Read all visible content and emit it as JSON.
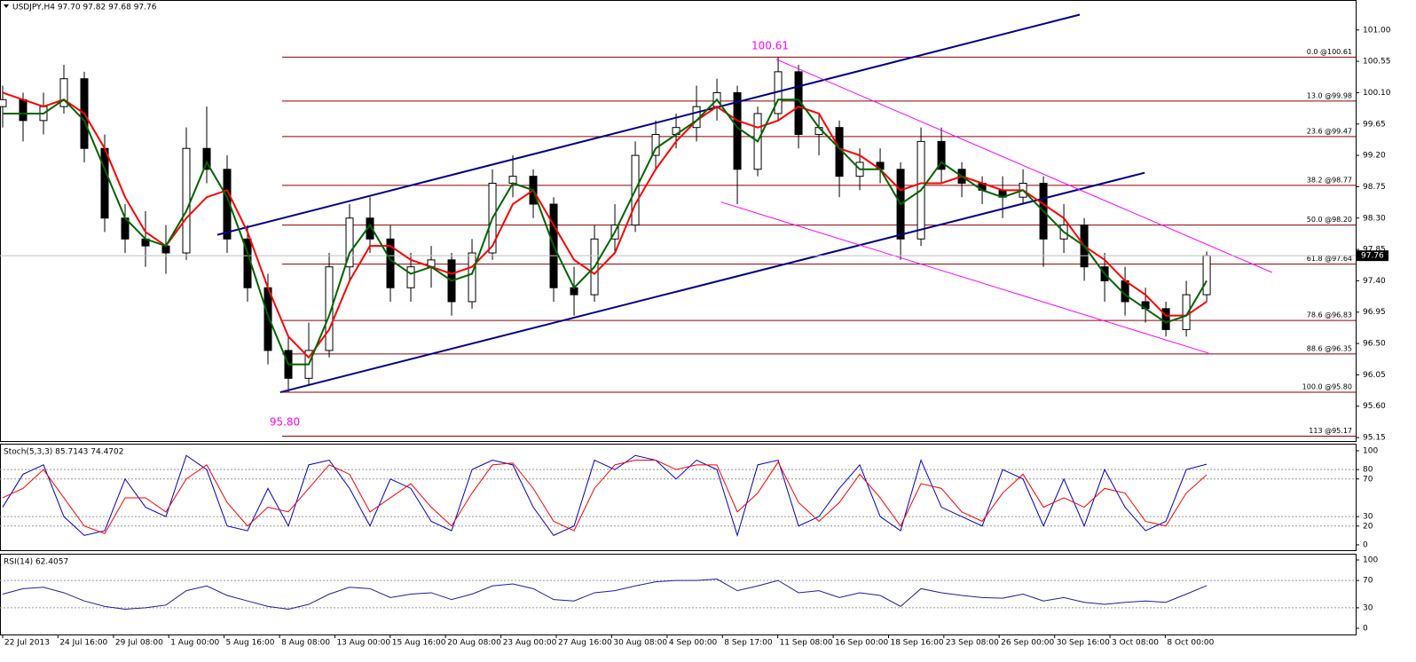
{
  "chart_data": [
    {
      "type": "candlestick",
      "title": "USDJPY,H4 97.70 97.82 97.68 97.76",
      "annotations": [
        "100.61",
        "95.80"
      ],
      "xlim": [
        -0.13,
        66.3
      ],
      "ylim": [
        95.1,
        101.43
      ],
      "yticks": [
        {
          "value": 101.0,
          "label": "101.00"
        },
        {
          "value": 100.55,
          "label": "100.55"
        },
        {
          "value": 100.1,
          "label": "100.10"
        },
        {
          "value": 99.65,
          "label": "99.65"
        },
        {
          "value": 99.2,
          "label": "99.20"
        },
        {
          "value": 98.75,
          "label": "98.75"
        },
        {
          "value": 98.3,
          "label": "98.30"
        },
        {
          "value": 97.85,
          "label": "97.85"
        },
        {
          "value": 97.4,
          "label": "97.40"
        },
        {
          "value": 96.95,
          "label": "96.95"
        },
        {
          "value": 96.5,
          "label": "96.50"
        },
        {
          "value": 96.05,
          "label": "96.05"
        },
        {
          "value": 95.6,
          "label": "95.60"
        },
        {
          "value": 95.15,
          "label": "95.15"
        }
      ],
      "xticks": [
        {
          "value": 0,
          "label": "22 Jul 2013"
        },
        {
          "value": 2.71,
          "label": "24 Jul 16:00"
        },
        {
          "value": 5.43,
          "label": "29 Jul 08:00"
        },
        {
          "value": 8.14,
          "label": "1 Aug 00:00"
        },
        {
          "value": 10.85,
          "label": "5 Aug 16:00"
        },
        {
          "value": 13.57,
          "label": "8 Aug 08:00"
        },
        {
          "value": 16.28,
          "label": "13 Aug 00:00"
        },
        {
          "value": 18.99,
          "label": "15 Aug 16:00"
        },
        {
          "value": 21.7,
          "label": "20 Aug 08:00"
        },
        {
          "value": 24.42,
          "label": "23 Aug 00:00"
        },
        {
          "value": 27.13,
          "label": "27 Aug 16:00"
        },
        {
          "value": 29.84,
          "label": "30 Aug 08:00"
        },
        {
          "value": 32.56,
          "label": "4 Sep 00:00"
        },
        {
          "value": 35.27,
          "label": "8 Sep 17:00"
        },
        {
          "value": 37.98,
          "label": "11 Sep 08:00"
        },
        {
          "value": 40.7,
          "label": "16 Sep 00:00"
        },
        {
          "value": 43.41,
          "label": "18 Sep 16:00"
        },
        {
          "value": 46.12,
          "label": "23 Sep 08:00"
        },
        {
          "value": 48.83,
          "label": "26 Sep 00:00"
        },
        {
          "value": 51.55,
          "label": "30 Sep 16:00"
        },
        {
          "value": 54.26,
          "label": "3 Oct 08:00"
        },
        {
          "value": 56.97,
          "label": "8 Oct 00:00"
        }
      ],
      "last": {
        "value": 97.76,
        "label": "97.76"
      },
      "ohlc": [
        [
          99.9,
          100.2,
          99.6,
          100.0
        ],
        [
          100.0,
          100.1,
          99.4,
          99.7
        ],
        [
          99.7,
          100.1,
          99.5,
          99.9
        ],
        [
          99.9,
          100.5,
          99.8,
          100.3
        ],
        [
          100.3,
          100.4,
          99.1,
          99.3
        ],
        [
          99.3,
          99.5,
          98.1,
          98.3
        ],
        [
          98.3,
          98.5,
          97.8,
          98.0
        ],
        [
          98.0,
          98.4,
          97.6,
          97.9
        ],
        [
          97.9,
          98.2,
          97.5,
          97.8
        ],
        [
          97.8,
          99.6,
          97.7,
          99.3
        ],
        [
          99.3,
          99.9,
          98.8,
          99.0
        ],
        [
          99.0,
          99.2,
          97.8,
          98.0
        ],
        [
          98.0,
          98.2,
          97.1,
          97.3
        ],
        [
          97.3,
          97.5,
          96.2,
          96.4
        ],
        [
          96.4,
          96.6,
          95.8,
          96.0
        ],
        [
          96.0,
          96.8,
          95.9,
          96.4
        ],
        [
          96.4,
          97.8,
          96.3,
          97.6
        ],
        [
          97.6,
          98.5,
          97.4,
          98.3
        ],
        [
          98.3,
          98.6,
          97.8,
          98.0
        ],
        [
          98.0,
          98.2,
          97.1,
          97.3
        ],
        [
          97.3,
          97.8,
          97.1,
          97.6
        ],
        [
          97.6,
          97.9,
          97.3,
          97.7
        ],
        [
          97.7,
          97.8,
          96.9,
          97.1
        ],
        [
          97.1,
          98.0,
          97.0,
          97.8
        ],
        [
          97.8,
          99.0,
          97.7,
          98.8
        ],
        [
          98.8,
          99.2,
          98.6,
          98.9
        ],
        [
          98.9,
          99.0,
          98.3,
          98.5
        ],
        [
          98.5,
          98.6,
          97.1,
          97.3
        ],
        [
          97.3,
          97.6,
          96.9,
          97.2
        ],
        [
          97.2,
          98.2,
          97.1,
          98.0
        ],
        [
          98.0,
          98.5,
          97.8,
          98.2
        ],
        [
          98.2,
          99.4,
          98.1,
          99.2
        ],
        [
          99.2,
          99.7,
          99.0,
          99.5
        ],
        [
          99.5,
          99.8,
          99.3,
          99.6
        ],
        [
          99.6,
          100.2,
          99.4,
          99.9
        ],
        [
          99.9,
          100.3,
          99.7,
          100.1
        ],
        [
          100.1,
          100.2,
          98.5,
          99.0
        ],
        [
          99.0,
          99.9,
          98.9,
          99.8
        ],
        [
          99.8,
          100.61,
          99.7,
          100.4
        ],
        [
          100.4,
          100.5,
          99.3,
          99.5
        ],
        [
          99.5,
          99.8,
          99.2,
          99.6
        ],
        [
          99.6,
          99.7,
          98.6,
          98.9
        ],
        [
          98.9,
          99.3,
          98.7,
          99.1
        ],
        [
          99.1,
          99.3,
          98.8,
          99.0
        ],
        [
          99.0,
          99.1,
          97.7,
          98.0
        ],
        [
          98.0,
          99.6,
          97.9,
          99.4
        ],
        [
          99.4,
          99.6,
          98.8,
          99.0
        ],
        [
          99.0,
          99.1,
          98.6,
          98.8
        ],
        [
          98.8,
          98.9,
          98.5,
          98.7
        ],
        [
          98.7,
          98.9,
          98.3,
          98.6
        ],
        [
          98.6,
          99.0,
          98.5,
          98.8
        ],
        [
          98.8,
          98.9,
          97.6,
          98.0
        ],
        [
          98.0,
          98.5,
          97.8,
          98.2
        ],
        [
          98.2,
          98.3,
          97.4,
          97.6
        ],
        [
          97.6,
          97.8,
          97.1,
          97.4
        ],
        [
          97.4,
          97.6,
          96.9,
          97.1
        ],
        [
          97.1,
          97.3,
          96.8,
          97.0
        ],
        [
          97.0,
          97.1,
          96.6,
          96.7
        ],
        [
          96.7,
          97.4,
          96.6,
          97.2
        ],
        [
          97.2,
          97.82,
          97.1,
          97.76
        ]
      ],
      "series": [
        {
          "color": "#ff0000",
          "values": [
            100.1,
            100.0,
            99.9,
            100.0,
            99.8,
            99.3,
            98.6,
            98.1,
            97.9,
            98.3,
            98.6,
            98.7,
            98.1,
            97.3,
            96.6,
            96.3,
            96.7,
            97.4,
            97.9,
            97.9,
            97.7,
            97.6,
            97.5,
            97.6,
            97.9,
            98.5,
            98.7,
            98.2,
            97.7,
            97.5,
            97.8,
            98.5,
            99.0,
            99.4,
            99.7,
            99.9,
            99.7,
            99.6,
            99.7,
            99.9,
            99.8,
            99.3,
            99.2,
            99.0,
            98.7,
            98.8,
            98.8,
            98.9,
            98.8,
            98.7,
            98.7,
            98.5,
            98.3,
            97.9,
            97.7,
            97.4,
            97.2,
            96.9,
            96.9,
            97.1
          ]
        },
        {
          "color": "#006400",
          "values": [
            99.8,
            99.8,
            99.8,
            100.0,
            99.7,
            99.0,
            98.3,
            98.0,
            97.9,
            98.4,
            99.1,
            98.6,
            97.8,
            96.9,
            96.2,
            96.2,
            96.9,
            97.8,
            98.2,
            97.7,
            97.5,
            97.6,
            97.4,
            97.5,
            98.3,
            98.8,
            98.7,
            97.9,
            97.3,
            97.6,
            98.1,
            98.7,
            99.3,
            99.5,
            99.7,
            100.0,
            99.6,
            99.4,
            100.0,
            100.0,
            99.6,
            99.3,
            99.0,
            99.0,
            98.5,
            98.7,
            99.1,
            98.9,
            98.7,
            98.6,
            98.7,
            98.4,
            98.1,
            97.9,
            97.5,
            97.2,
            97.0,
            96.8,
            96.9,
            97.4
          ]
        }
      ],
      "levels": [
        {
          "value": 100.61,
          "label": "0.0 @100.61"
        },
        {
          "value": 99.98,
          "label": "13.0 @99.98"
        },
        {
          "value": 99.47,
          "label": "23.6 @99.47"
        },
        {
          "value": 98.77,
          "label": "38.2 @98.77"
        },
        {
          "value": 98.2,
          "label": "50.0 @98.20"
        },
        {
          "value": 97.64,
          "label": "61.8 @97.64"
        },
        {
          "value": 96.83,
          "label": "78.6 @96.83"
        },
        {
          "value": 96.35,
          "label": "88.6 @96.35"
        },
        {
          "value": 95.8,
          "label": "100.0 @95.80"
        },
        {
          "value": 95.17,
          "label": "113 @95.17"
        }
      ],
      "level_color": "#8b0000",
      "lines": [
        {
          "color": "#00008b",
          "points": [
            [
              10.52,
              98.06
            ],
            [
              52.78,
              101.22
            ]
          ]
        },
        {
          "color": "#00008b",
          "points": [
            [
              13.6,
              95.8
            ],
            [
              55.96,
              98.95
            ]
          ]
        },
        {
          "color": "#ff00ff",
          "points": [
            [
              37.9,
              100.58
            ],
            [
              62.2,
              97.52
            ]
          ]
        },
        {
          "color": "#ff00ff",
          "points": [
            [
              35.2,
              98.53
            ],
            [
              59.1,
              96.36
            ]
          ]
        }
      ]
    },
    {
      "type": "line",
      "title": "Stoch(5,3,3) 85.7143 74.4702",
      "ylim": [
        -5.7,
        107.5
      ],
      "yticks": [
        100,
        80,
        70,
        30,
        20,
        0
      ],
      "levels": [
        80,
        70,
        30,
        20
      ],
      "series": [
        {
          "color": "#0000cd",
          "values": [
            40,
            75,
            85,
            30,
            10,
            15,
            70,
            40,
            30,
            95,
            80,
            20,
            15,
            60,
            20,
            85,
            90,
            60,
            20,
            70,
            60,
            25,
            15,
            80,
            90,
            85,
            40,
            10,
            20,
            90,
            80,
            95,
            90,
            70,
            90,
            80,
            10,
            85,
            90,
            20,
            30,
            60,
            85,
            30,
            15,
            90,
            40,
            30,
            20,
            80,
            70,
            20,
            70,
            20,
            80,
            40,
            15,
            25,
            80,
            85.7143
          ]
        },
        {
          "color": "#ff0000",
          "values": [
            50,
            60,
            80,
            50,
            20,
            12,
            50,
            50,
            35,
            70,
            85,
            45,
            20,
            40,
            35,
            60,
            85,
            75,
            35,
            50,
            65,
            40,
            20,
            55,
            85,
            87,
            60,
            25,
            15,
            60,
            85,
            90,
            90,
            80,
            85,
            85,
            35,
            55,
            88,
            45,
            25,
            45,
            75,
            50,
            20,
            65,
            60,
            35,
            25,
            55,
            75,
            40,
            50,
            40,
            60,
            55,
            25,
            20,
            55,
            74.4702
          ]
        }
      ]
    },
    {
      "type": "line",
      "title": "RSI(14) 62.4057",
      "ylim": [
        -9.1,
        107.8
      ],
      "yticks": [
        100,
        70,
        30,
        0
      ],
      "levels": [
        70,
        30
      ],
      "series": [
        {
          "color": "#1e1e9e",
          "values": [
            50,
            58,
            60,
            52,
            40,
            32,
            28,
            30,
            34,
            55,
            62,
            48,
            40,
            32,
            28,
            35,
            50,
            60,
            58,
            45,
            50,
            52,
            42,
            50,
            62,
            65,
            58,
            42,
            40,
            52,
            55,
            62,
            68,
            70,
            70,
            72,
            55,
            62,
            70,
            52,
            55,
            45,
            52,
            48,
            32,
            58,
            52,
            48,
            45,
            44,
            50,
            40,
            45,
            38,
            35,
            38,
            40,
            38,
            50,
            62.4057
          ]
        }
      ]
    }
  ]
}
